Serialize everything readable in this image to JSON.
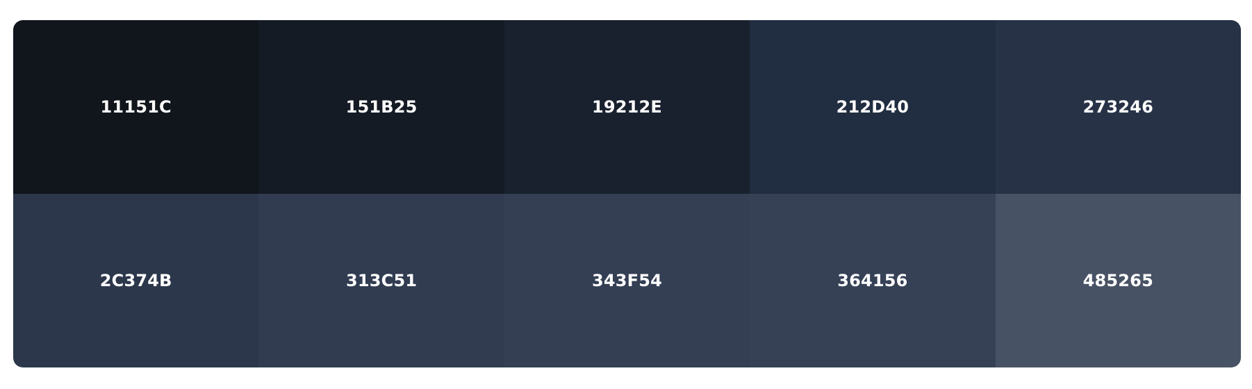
{
  "palette": {
    "swatches": [
      {
        "label": "11151C",
        "color": "#11151C"
      },
      {
        "label": "151B25",
        "color": "#151B25"
      },
      {
        "label": "19212E",
        "color": "#19212E"
      },
      {
        "label": "212D40",
        "color": "#212D40"
      },
      {
        "label": "273246",
        "color": "#273246"
      },
      {
        "label": "2C374B",
        "color": "#2C374B"
      },
      {
        "label": "313C51",
        "color": "#313C51"
      },
      {
        "label": "343F54",
        "color": "#343F54"
      },
      {
        "label": "364156",
        "color": "#364156"
      },
      {
        "label": "485265",
        "color": "#485265"
      }
    ]
  }
}
